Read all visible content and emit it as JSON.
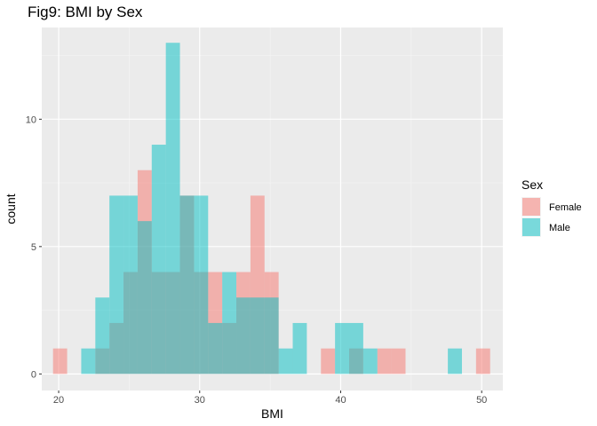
{
  "chart_data": {
    "type": "histogram",
    "title": "Fig9: BMI by Sex",
    "xlabel": "BMI",
    "ylabel": "count",
    "xlim": [
      18.8,
      51.5
    ],
    "ylim": [
      -0.65,
      13.6
    ],
    "x_ticks": [
      20,
      30,
      40,
      50
    ],
    "y_ticks": [
      0,
      5,
      10
    ],
    "bin_width": 1,
    "bin_start": 19.6,
    "grid": true,
    "legend": {
      "title": "Sex",
      "position": "right"
    },
    "series": [
      {
        "name": "Female",
        "color": "#F8766D",
        "values": [
          1,
          0,
          0,
          1,
          2,
          4,
          8,
          4,
          4,
          7,
          4,
          4,
          2,
          4,
          7,
          4,
          0,
          0,
          0,
          1,
          0,
          1,
          0,
          1,
          1,
          0,
          0,
          0,
          0,
          0,
          1
        ]
      },
      {
        "name": "Male",
        "color": "#00BFC4",
        "values": [
          0,
          0,
          1,
          3,
          7,
          7,
          6,
          9,
          13,
          7,
          7,
          2,
          4,
          3,
          3,
          3,
          1,
          2,
          0,
          0,
          2,
          2,
          1,
          0,
          0,
          0,
          0,
          0,
          1,
          0,
          0
        ]
      }
    ]
  }
}
